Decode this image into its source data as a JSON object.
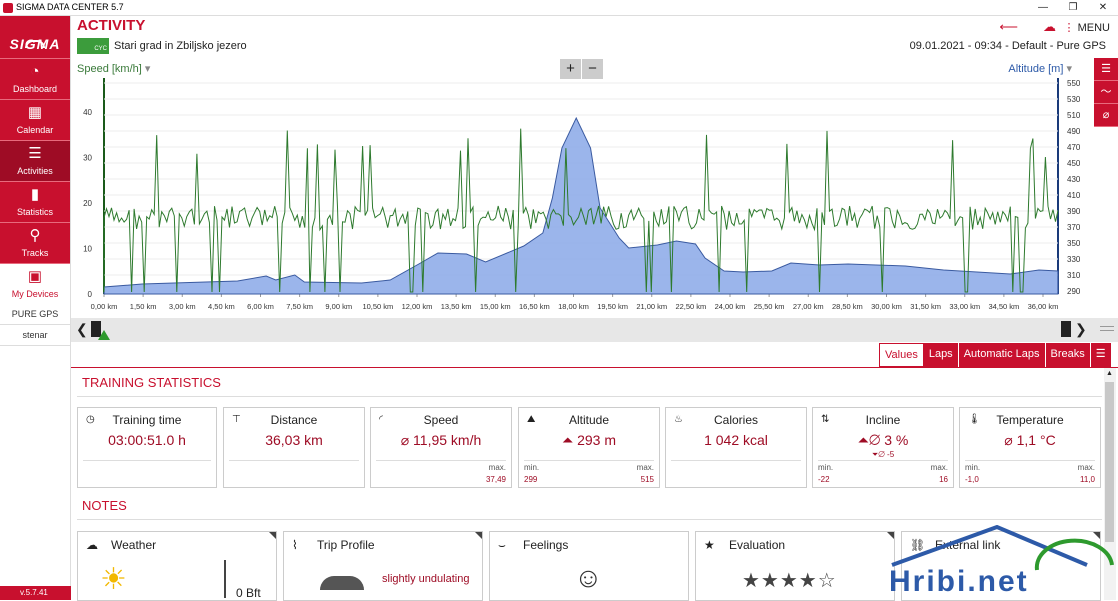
{
  "window": {
    "title": "SIGMA DATA CENTER 5.7",
    "minimize": "—",
    "restore": "❐",
    "close": "✕"
  },
  "sidebar": {
    "logo": "SIGMA",
    "items": [
      {
        "label": "Dashboard",
        "icon": "◔"
      },
      {
        "label": "Calendar",
        "icon": "▦"
      },
      {
        "label": "Activities",
        "icon": "☰"
      },
      {
        "label": "Statistics",
        "icon": "▮"
      },
      {
        "label": "Tracks",
        "icon": "⚲"
      },
      {
        "label": "My Devices",
        "icon": "▣"
      }
    ],
    "device": "PURE GPS",
    "user": "stenar",
    "version": "v.5.7.41"
  },
  "header": {
    "title": "ACTIVITY",
    "badge": "CYC",
    "activity_name": "Stari grad in Zbiljsko jezero",
    "date": "09.01.2021",
    "time": "09:34",
    "profile": "Default",
    "device": "Pure GPS",
    "menu": "MENU"
  },
  "chart": {
    "left_label": "Speed [km/h]",
    "right_label": "Altitude [m]",
    "zoom_in": "+",
    "zoom_out": "−",
    "speed_color": "#3a7a3a",
    "alt_color": "#2d5aa8",
    "y_left_ticks": [
      "0",
      "10",
      "20",
      "30",
      "40"
    ],
    "y_right_ticks": [
      "290",
      "310",
      "330",
      "350",
      "370",
      "390",
      "410",
      "430",
      "450",
      "470",
      "490",
      "510",
      "530",
      "550"
    ],
    "x_ticks": [
      "0,00 km",
      "1,50 km",
      "3,00 km",
      "4,50 km",
      "6,00 km",
      "7,50 km",
      "9,00 km",
      "10,50 km",
      "12,00 km",
      "13,50 km",
      "15,00 km",
      "16,50 km",
      "18,00 km",
      "19,50 km",
      "21,00 km",
      "22,50 km",
      "24,00 km",
      "25,50 km",
      "27,00 km",
      "28,50 km",
      "30,00 km",
      "31,50 km",
      "33,00 km",
      "34,50 km",
      "36,00 km"
    ]
  },
  "tabs": [
    "Values",
    "Laps",
    "Automatic Laps",
    "Breaks"
  ],
  "training_statistics": {
    "title": "TRAINING STATISTICS",
    "cards": [
      {
        "title": "Training time",
        "icon": "◷",
        "value": "03:00:51.0 h"
      },
      {
        "title": "Distance",
        "icon": "⊤",
        "value": "36,03 km"
      },
      {
        "title": "Speed",
        "icon": "◜",
        "value": "⌀ 11,95 km/h",
        "max_label": "max.",
        "max": "37,49"
      },
      {
        "title": "Altitude",
        "icon": "⛰",
        "value": "⏶ 293 m",
        "min_label": "min.",
        "min": "299",
        "max_label": "max.",
        "max": "515"
      },
      {
        "title": "Calories",
        "icon": "♨",
        "value": "1 042 kcal"
      },
      {
        "title": "Incline",
        "icon": "⇅",
        "value": "⏶⌀ 3 %",
        "sub": "⏷⌀  -5",
        "min_label": "min.",
        "min": "-22",
        "max_label": "max.",
        "max": "16"
      },
      {
        "title": "Temperature",
        "icon": "🌡",
        "value": "⌀ 1,1 °C",
        "min_label": "min.",
        "min": "-1,0",
        "max_label": "max.",
        "max": "11,0"
      }
    ]
  },
  "notes": {
    "title": "NOTES",
    "cards": [
      {
        "title": "Weather",
        "icon": "☁",
        "detail": "0 Bft"
      },
      {
        "title": "Trip Profile",
        "icon": "⌇",
        "detail": "slightly undulating"
      },
      {
        "title": "Feelings",
        "icon": "⌣",
        "detail": "☺"
      },
      {
        "title": "Evaluation",
        "icon": "★",
        "detail": "★★★★☆"
      },
      {
        "title": "External link",
        "icon": "⛓",
        "detail": ""
      }
    ]
  },
  "watermark": "Hribi.net"
}
